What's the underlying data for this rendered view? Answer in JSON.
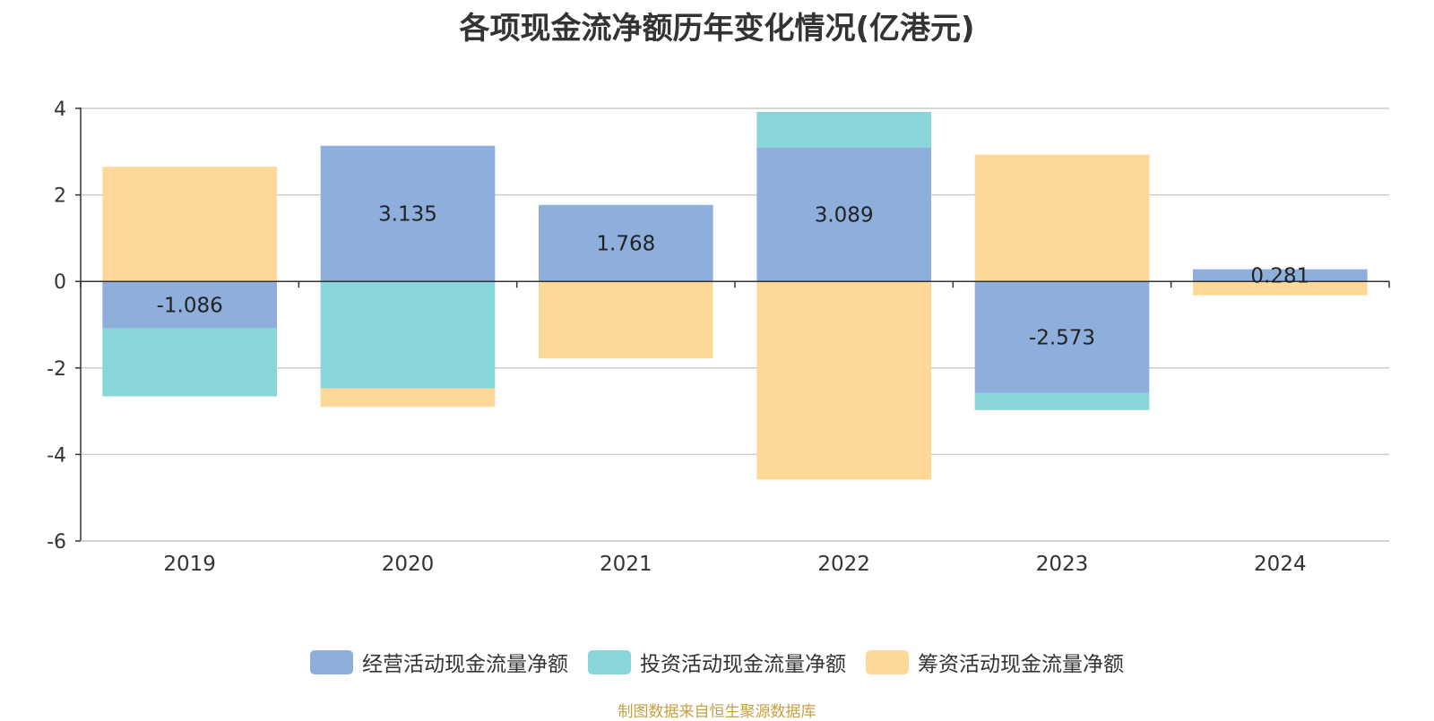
{
  "chart_data": {
    "type": "bar",
    "stacked": true,
    "title": "各项现金流净额历年变化情况(亿港元)",
    "categories": [
      "2019",
      "2020",
      "2021",
      "2022",
      "2023",
      "2024"
    ],
    "ylim": [
      -6,
      4
    ],
    "yticks": [
      4,
      2,
      0,
      -2,
      -4,
      -6
    ],
    "grid": true,
    "legend_position": "bottom",
    "series": [
      {
        "name": "经营活动现金流量净额",
        "color": "#8eaedb",
        "values": [
          -1.086,
          3.135,
          1.768,
          3.089,
          -2.573,
          0.281
        ]
      },
      {
        "name": "投资活动现金流量净额",
        "color": "#88d5da",
        "values": [
          -1.57,
          -2.47,
          0,
          0.83,
          -0.4,
          0
        ]
      },
      {
        "name": "筹资活动现金流量净额",
        "color": "#fed899",
        "values": [
          2.65,
          -0.43,
          -1.78,
          -4.58,
          2.93,
          -0.32
        ]
      }
    ],
    "data_labels": [
      "-1.086",
      "3.135",
      "1.768",
      "3.089",
      "-2.573",
      "0.281"
    ]
  },
  "source": "制图数据来自恒生聚源数据库"
}
